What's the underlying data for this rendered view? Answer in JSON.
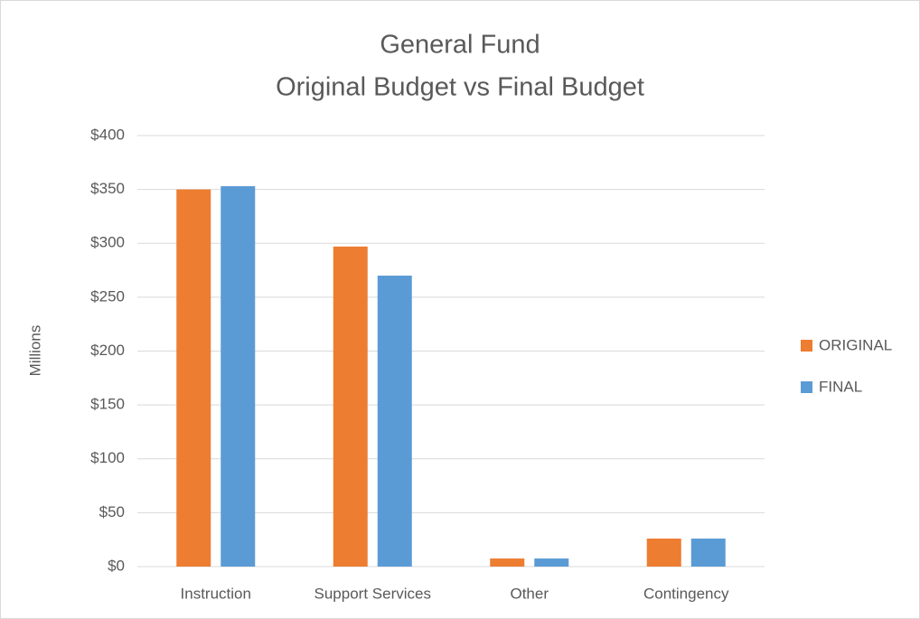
{
  "chart_data": {
    "type": "bar",
    "title": [
      "General Fund",
      "Original Budget vs Final Budget"
    ],
    "y_label": "Millions",
    "categories": [
      "Instruction",
      "Support Services",
      "Other",
      "Contingency"
    ],
    "series": [
      {
        "name": "ORIGINAL",
        "color": "#ed7d31",
        "values": [
          350,
          297,
          7.5,
          26
        ]
      },
      {
        "name": "FINAL",
        "color": "#5b9bd5",
        "values": [
          353,
          270,
          7.5,
          26
        ]
      }
    ],
    "ylim": [
      0,
      400
    ],
    "yticks": [
      {
        "value": 0,
        "label": "$0"
      },
      {
        "value": 50,
        "label": "$50"
      },
      {
        "value": 100,
        "label": "$100"
      },
      {
        "value": 150,
        "label": "$150"
      },
      {
        "value": 200,
        "label": "$200"
      },
      {
        "value": 250,
        "label": "$250"
      },
      {
        "value": 300,
        "label": "$300"
      },
      {
        "value": 350,
        "label": "$350"
      },
      {
        "value": 400,
        "label": "$400"
      }
    ],
    "grid": true,
    "legend": "right"
  }
}
